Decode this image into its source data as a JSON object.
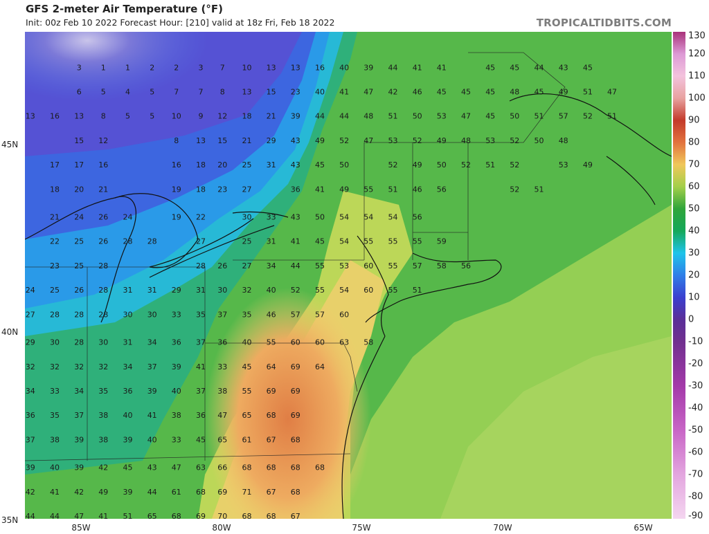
{
  "header": {
    "title": "GFS 2-meter Air Temperature (°F)",
    "subtitle": "Init: 00z Feb 10 2022   Forecast Hour: [210]   valid at 18z Fri, Feb 18 2022",
    "source": "TROPICALTIDBITS.COM"
  },
  "map": {
    "lat_labels": [
      {
        "label": "45N",
        "lat": 45
      },
      {
        "label": "40N",
        "lat": 40
      },
      {
        "label": "35N",
        "lat": 35
      }
    ],
    "lon_labels": [
      {
        "label": "85W",
        "lon": -85
      },
      {
        "label": "80W",
        "lon": -80
      },
      {
        "label": "75W",
        "lon": -75
      },
      {
        "label": "70W",
        "lon": -70
      },
      {
        "label": "65W",
        "lon": -65
      }
    ],
    "station_values": [
      [
        -85.9,
        47.9,
        "3"
      ],
      [
        -85.0,
        47.9,
        "1"
      ],
      [
        -84.1,
        47.9,
        "1"
      ],
      [
        -83.2,
        47.9,
        "2"
      ],
      [
        -82.3,
        47.9,
        "2"
      ],
      [
        -81.4,
        47.9,
        "3"
      ],
      [
        -80.6,
        47.9,
        "7"
      ],
      [
        -79.7,
        47.9,
        "10"
      ],
      [
        -78.8,
        47.9,
        "13"
      ],
      [
        -77.9,
        47.9,
        "13"
      ],
      [
        -77.0,
        47.9,
        "16"
      ],
      [
        -76.1,
        47.9,
        "40"
      ],
      [
        -75.2,
        47.9,
        "39"
      ],
      [
        -74.3,
        47.9,
        "44"
      ],
      [
        -73.4,
        47.9,
        "41"
      ],
      [
        -72.5,
        47.9,
        "41"
      ],
      [
        -70.7,
        47.9,
        "45"
      ],
      [
        -69.8,
        47.9,
        "45"
      ],
      [
        -68.9,
        47.9,
        "44"
      ],
      [
        -68.0,
        47.9,
        "43"
      ],
      [
        -67.1,
        47.9,
        "45"
      ],
      [
        -85.9,
        47.2,
        "6"
      ],
      [
        -85.0,
        47.2,
        "5"
      ],
      [
        -84.1,
        47.2,
        "4"
      ],
      [
        -83.2,
        47.2,
        "5"
      ],
      [
        -82.3,
        47.2,
        "7"
      ],
      [
        -81.4,
        47.2,
        "7"
      ],
      [
        -80.6,
        47.2,
        "8"
      ],
      [
        -79.7,
        47.2,
        "13"
      ],
      [
        -78.8,
        47.2,
        "15"
      ],
      [
        -77.9,
        47.2,
        "23"
      ],
      [
        -77.0,
        47.2,
        "40"
      ],
      [
        -76.1,
        47.2,
        "41"
      ],
      [
        -75.2,
        47.2,
        "47"
      ],
      [
        -74.3,
        47.2,
        "42"
      ],
      [
        -73.4,
        47.2,
        "46"
      ],
      [
        -72.5,
        47.2,
        "45"
      ],
      [
        -71.6,
        47.2,
        "45"
      ],
      [
        -70.7,
        47.2,
        "45"
      ],
      [
        -69.8,
        47.2,
        "48"
      ],
      [
        -68.9,
        47.2,
        "45"
      ],
      [
        -68.0,
        47.2,
        "49"
      ],
      [
        -67.1,
        47.2,
        "51"
      ],
      [
        -66.2,
        47.2,
        "47"
      ],
      [
        -87.7,
        46.5,
        "13"
      ],
      [
        -86.8,
        46.5,
        "16"
      ],
      [
        -85.9,
        46.5,
        "13"
      ],
      [
        -85.0,
        46.5,
        "8"
      ],
      [
        -84.1,
        46.5,
        "5"
      ],
      [
        -83.2,
        46.5,
        "5"
      ],
      [
        -82.3,
        46.5,
        "10"
      ],
      [
        -81.4,
        46.5,
        "9"
      ],
      [
        -80.6,
        46.5,
        "12"
      ],
      [
        -79.7,
        46.5,
        "18"
      ],
      [
        -78.8,
        46.5,
        "21"
      ],
      [
        -77.9,
        46.5,
        "39"
      ],
      [
        -77.0,
        46.5,
        "44"
      ],
      [
        -76.1,
        46.5,
        "44"
      ],
      [
        -75.2,
        46.5,
        "48"
      ],
      [
        -74.3,
        46.5,
        "51"
      ],
      [
        -73.4,
        46.5,
        "50"
      ],
      [
        -72.5,
        46.5,
        "53"
      ],
      [
        -71.6,
        46.5,
        "47"
      ],
      [
        -70.7,
        46.5,
        "45"
      ],
      [
        -69.8,
        46.5,
        "50"
      ],
      [
        -68.9,
        46.5,
        "51"
      ],
      [
        -68.0,
        46.5,
        "57"
      ],
      [
        -67.1,
        46.5,
        "52"
      ],
      [
        -66.2,
        46.5,
        "51"
      ],
      [
        -85.9,
        45.8,
        "15"
      ],
      [
        -85.0,
        45.8,
        "12"
      ],
      [
        -82.3,
        45.8,
        "8"
      ],
      [
        -81.4,
        45.8,
        "13"
      ],
      [
        -80.6,
        45.8,
        "15"
      ],
      [
        -79.7,
        45.8,
        "21"
      ],
      [
        -78.8,
        45.8,
        "29"
      ],
      [
        -77.9,
        45.8,
        "43"
      ],
      [
        -77.0,
        45.8,
        "49"
      ],
      [
        -76.1,
        45.8,
        "52"
      ],
      [
        -75.2,
        45.8,
        "47"
      ],
      [
        -74.3,
        45.8,
        "53"
      ],
      [
        -73.4,
        45.8,
        "52"
      ],
      [
        -72.5,
        45.8,
        "49"
      ],
      [
        -71.6,
        45.8,
        "48"
      ],
      [
        -70.7,
        45.8,
        "53"
      ],
      [
        -69.8,
        45.8,
        "52"
      ],
      [
        -68.9,
        45.8,
        "50"
      ],
      [
        -68.0,
        45.8,
        "48"
      ],
      [
        -86.8,
        45.1,
        "17"
      ],
      [
        -85.9,
        45.1,
        "17"
      ],
      [
        -85.0,
        45.1,
        "16"
      ],
      [
        -82.3,
        45.1,
        "16"
      ],
      [
        -81.4,
        45.1,
        "18"
      ],
      [
        -80.6,
        45.1,
        "20"
      ],
      [
        -79.7,
        45.1,
        "25"
      ],
      [
        -78.8,
        45.1,
        "31"
      ],
      [
        -77.9,
        45.1,
        "43"
      ],
      [
        -77.0,
        45.1,
        "45"
      ],
      [
        -76.1,
        45.1,
        "50"
      ],
      [
        -74.3,
        45.1,
        "52"
      ],
      [
        -73.4,
        45.1,
        "49"
      ],
      [
        -72.5,
        45.1,
        "50"
      ],
      [
        -71.6,
        45.1,
        "52"
      ],
      [
        -70.7,
        45.1,
        "51"
      ],
      [
        -69.8,
        45.1,
        "52"
      ],
      [
        -68.0,
        45.1,
        "53"
      ],
      [
        -67.1,
        45.1,
        "49"
      ],
      [
        -86.8,
        44.4,
        "18"
      ],
      [
        -85.9,
        44.4,
        "20"
      ],
      [
        -85.0,
        44.4,
        "21"
      ],
      [
        -82.3,
        44.4,
        "19"
      ],
      [
        -81.4,
        44.4,
        "18"
      ],
      [
        -80.6,
        44.4,
        "23"
      ],
      [
        -79.7,
        44.4,
        "27"
      ],
      [
        -77.9,
        44.4,
        "36"
      ],
      [
        -77.0,
        44.4,
        "41"
      ],
      [
        -76.1,
        44.4,
        "49"
      ],
      [
        -75.2,
        44.4,
        "55"
      ],
      [
        -74.3,
        44.4,
        "51"
      ],
      [
        -73.4,
        44.4,
        "46"
      ],
      [
        -72.5,
        44.4,
        "56"
      ],
      [
        -69.8,
        44.4,
        "52"
      ],
      [
        -68.9,
        44.4,
        "51"
      ],
      [
        -86.8,
        43.6,
        "21"
      ],
      [
        -85.9,
        43.6,
        "24"
      ],
      [
        -85.0,
        43.6,
        "26"
      ],
      [
        -84.1,
        43.6,
        "24"
      ],
      [
        -82.3,
        43.6,
        "19"
      ],
      [
        -81.4,
        43.6,
        "22"
      ],
      [
        -79.7,
        43.6,
        "30"
      ],
      [
        -78.8,
        43.6,
        "33"
      ],
      [
        -77.9,
        43.6,
        "43"
      ],
      [
        -77.0,
        43.6,
        "50"
      ],
      [
        -76.1,
        43.6,
        "54"
      ],
      [
        -75.2,
        43.6,
        "54"
      ],
      [
        -74.3,
        43.6,
        "54"
      ],
      [
        -73.4,
        43.6,
        "56"
      ],
      [
        -86.8,
        42.9,
        "22"
      ],
      [
        -85.9,
        42.9,
        "25"
      ],
      [
        -85.0,
        42.9,
        "26"
      ],
      [
        -84.1,
        42.9,
        "28"
      ],
      [
        -83.2,
        42.9,
        "28"
      ],
      [
        -81.4,
        42.9,
        "27"
      ],
      [
        -79.7,
        42.9,
        "25"
      ],
      [
        -78.8,
        42.9,
        "31"
      ],
      [
        -77.9,
        42.9,
        "41"
      ],
      [
        -77.0,
        42.9,
        "45"
      ],
      [
        -76.1,
        42.9,
        "54"
      ],
      [
        -75.2,
        42.9,
        "55"
      ],
      [
        -74.3,
        42.9,
        "55"
      ],
      [
        -73.4,
        42.9,
        "55"
      ],
      [
        -72.5,
        42.9,
        "59"
      ],
      [
        -86.8,
        42.2,
        "23"
      ],
      [
        -85.9,
        42.2,
        "25"
      ],
      [
        -85.0,
        42.2,
        "28"
      ],
      [
        -81.4,
        42.2,
        "28"
      ],
      [
        -80.6,
        42.2,
        "26"
      ],
      [
        -79.7,
        42.2,
        "27"
      ],
      [
        -78.8,
        42.2,
        "34"
      ],
      [
        -77.9,
        42.2,
        "44"
      ],
      [
        -77.0,
        42.2,
        "55"
      ],
      [
        -76.1,
        42.2,
        "53"
      ],
      [
        -75.2,
        42.2,
        "60"
      ],
      [
        -74.3,
        42.2,
        "55"
      ],
      [
        -73.4,
        42.2,
        "57"
      ],
      [
        -72.5,
        42.2,
        "58"
      ],
      [
        -71.6,
        42.2,
        "56"
      ],
      [
        -87.7,
        41.5,
        "24"
      ],
      [
        -86.8,
        41.5,
        "25"
      ],
      [
        -85.9,
        41.5,
        "26"
      ],
      [
        -85.0,
        41.5,
        "28"
      ],
      [
        -84.1,
        41.5,
        "31"
      ],
      [
        -83.2,
        41.5,
        "31"
      ],
      [
        -82.3,
        41.5,
        "29"
      ],
      [
        -81.4,
        41.5,
        "31"
      ],
      [
        -80.6,
        41.5,
        "30"
      ],
      [
        -79.7,
        41.5,
        "32"
      ],
      [
        -78.8,
        41.5,
        "40"
      ],
      [
        -77.9,
        41.5,
        "52"
      ],
      [
        -77.0,
        41.5,
        "55"
      ],
      [
        -76.1,
        41.5,
        "54"
      ],
      [
        -75.2,
        41.5,
        "60"
      ],
      [
        -74.3,
        41.5,
        "55"
      ],
      [
        -73.4,
        41.5,
        "51"
      ],
      [
        -87.7,
        40.8,
        "27"
      ],
      [
        -86.8,
        40.8,
        "28"
      ],
      [
        -85.9,
        40.8,
        "28"
      ],
      [
        -85.0,
        40.8,
        "28"
      ],
      [
        -84.1,
        40.8,
        "30"
      ],
      [
        -83.2,
        40.8,
        "30"
      ],
      [
        -82.3,
        40.8,
        "33"
      ],
      [
        -81.4,
        40.8,
        "35"
      ],
      [
        -80.6,
        40.8,
        "37"
      ],
      [
        -79.7,
        40.8,
        "35"
      ],
      [
        -78.8,
        40.8,
        "46"
      ],
      [
        -77.9,
        40.8,
        "57"
      ],
      [
        -77.0,
        40.8,
        "57"
      ],
      [
        -76.1,
        40.8,
        "60"
      ],
      [
        -87.7,
        40.0,
        "29"
      ],
      [
        -86.8,
        40.0,
        "30"
      ],
      [
        -85.9,
        40.0,
        "28"
      ],
      [
        -85.0,
        40.0,
        "30"
      ],
      [
        -84.1,
        40.0,
        "31"
      ],
      [
        -83.2,
        40.0,
        "34"
      ],
      [
        -82.3,
        40.0,
        "36"
      ],
      [
        -81.4,
        40.0,
        "37"
      ],
      [
        -80.6,
        40.0,
        "36"
      ],
      [
        -79.7,
        40.0,
        "40"
      ],
      [
        -78.8,
        40.0,
        "55"
      ],
      [
        -77.9,
        40.0,
        "60"
      ],
      [
        -77.0,
        40.0,
        "60"
      ],
      [
        -76.1,
        40.0,
        "63"
      ],
      [
        -75.2,
        40.0,
        "58"
      ],
      [
        -87.7,
        39.3,
        "32"
      ],
      [
        -86.8,
        39.3,
        "32"
      ],
      [
        -85.9,
        39.3,
        "32"
      ],
      [
        -85.0,
        39.3,
        "32"
      ],
      [
        -84.1,
        39.3,
        "34"
      ],
      [
        -83.2,
        39.3,
        "37"
      ],
      [
        -82.3,
        39.3,
        "39"
      ],
      [
        -81.4,
        39.3,
        "41"
      ],
      [
        -80.6,
        39.3,
        "33"
      ],
      [
        -79.7,
        39.3,
        "45"
      ],
      [
        -78.8,
        39.3,
        "64"
      ],
      [
        -77.9,
        39.3,
        "69"
      ],
      [
        -77.0,
        39.3,
        "64"
      ],
      [
        -87.7,
        38.6,
        "34"
      ],
      [
        -86.8,
        38.6,
        "33"
      ],
      [
        -85.9,
        38.6,
        "34"
      ],
      [
        -85.0,
        38.6,
        "35"
      ],
      [
        -84.1,
        38.6,
        "36"
      ],
      [
        -83.2,
        38.6,
        "39"
      ],
      [
        -82.3,
        38.6,
        "40"
      ],
      [
        -81.4,
        38.6,
        "37"
      ],
      [
        -80.6,
        38.6,
        "38"
      ],
      [
        -79.7,
        38.6,
        "55"
      ],
      [
        -78.8,
        38.6,
        "69"
      ],
      [
        -77.9,
        38.6,
        "69"
      ],
      [
        -87.7,
        37.9,
        "36"
      ],
      [
        -86.8,
        37.9,
        "35"
      ],
      [
        -85.9,
        37.9,
        "37"
      ],
      [
        -85.0,
        37.9,
        "38"
      ],
      [
        -84.1,
        37.9,
        "40"
      ],
      [
        -83.2,
        37.9,
        "41"
      ],
      [
        -82.3,
        37.9,
        "38"
      ],
      [
        -81.4,
        37.9,
        "36"
      ],
      [
        -80.6,
        37.9,
        "47"
      ],
      [
        -79.7,
        37.9,
        "65"
      ],
      [
        -78.8,
        37.9,
        "68"
      ],
      [
        -77.9,
        37.9,
        "69"
      ],
      [
        -87.7,
        37.2,
        "37"
      ],
      [
        -86.8,
        37.2,
        "38"
      ],
      [
        -85.9,
        37.2,
        "39"
      ],
      [
        -85.0,
        37.2,
        "38"
      ],
      [
        -84.1,
        37.2,
        "39"
      ],
      [
        -83.2,
        37.2,
        "40"
      ],
      [
        -82.3,
        37.2,
        "33"
      ],
      [
        -81.4,
        37.2,
        "45"
      ],
      [
        -80.6,
        37.2,
        "65"
      ],
      [
        -79.7,
        37.2,
        "61"
      ],
      [
        -78.8,
        37.2,
        "67"
      ],
      [
        -77.9,
        37.2,
        "68"
      ],
      [
        -87.7,
        36.4,
        "39"
      ],
      [
        -86.8,
        36.4,
        "40"
      ],
      [
        -85.9,
        36.4,
        "39"
      ],
      [
        -85.0,
        36.4,
        "42"
      ],
      [
        -84.1,
        36.4,
        "45"
      ],
      [
        -83.2,
        36.4,
        "43"
      ],
      [
        -82.3,
        36.4,
        "47"
      ],
      [
        -81.4,
        36.4,
        "63"
      ],
      [
        -80.6,
        36.4,
        "66"
      ],
      [
        -79.7,
        36.4,
        "68"
      ],
      [
        -78.8,
        36.4,
        "68"
      ],
      [
        -77.9,
        36.4,
        "68"
      ],
      [
        -77.0,
        36.4,
        "68"
      ],
      [
        -87.7,
        35.7,
        "42"
      ],
      [
        -86.8,
        35.7,
        "41"
      ],
      [
        -85.9,
        35.7,
        "42"
      ],
      [
        -85.0,
        35.7,
        "49"
      ],
      [
        -84.1,
        35.7,
        "39"
      ],
      [
        -83.2,
        35.7,
        "44"
      ],
      [
        -82.3,
        35.7,
        "61"
      ],
      [
        -81.4,
        35.7,
        "68"
      ],
      [
        -80.6,
        35.7,
        "69"
      ],
      [
        -79.7,
        35.7,
        "71"
      ],
      [
        -78.8,
        35.7,
        "67"
      ],
      [
        -77.9,
        35.7,
        "68"
      ],
      [
        -87.7,
        35.0,
        "44"
      ],
      [
        -86.8,
        35.0,
        "44"
      ],
      [
        -85.9,
        35.0,
        "47"
      ],
      [
        -85.0,
        35.0,
        "41"
      ],
      [
        -84.1,
        35.0,
        "51"
      ],
      [
        -83.2,
        35.0,
        "65"
      ],
      [
        -82.3,
        35.0,
        "68"
      ],
      [
        -81.4,
        35.0,
        "69"
      ],
      [
        -80.6,
        35.0,
        "70"
      ],
      [
        -79.7,
        35.0,
        "68"
      ],
      [
        -78.8,
        35.0,
        "68"
      ],
      [
        -77.9,
        35.0,
        "67"
      ]
    ]
  },
  "colorbar": {
    "unit": "°F",
    "labels": [
      "130",
      "120",
      "110",
      "100",
      "90",
      "80",
      "70",
      "60",
      "50",
      "40",
      "30",
      "20",
      "10",
      "0",
      "-10",
      "-20",
      "-30",
      "-40",
      "-50",
      "-60",
      "-70",
      "-80",
      "-90"
    ],
    "stops": [
      [
        -90,
        "#f4d6f0"
      ],
      [
        -70,
        "#e3a6df"
      ],
      [
        -50,
        "#c865c6"
      ],
      [
        -30,
        "#a33aa9"
      ],
      [
        -10,
        "#70308f"
      ],
      [
        0,
        "#5a2f98"
      ],
      [
        10,
        "#3b3fcf"
      ],
      [
        20,
        "#2f7fe8"
      ],
      [
        30,
        "#1ec4ea"
      ],
      [
        40,
        "#15a85a"
      ],
      [
        50,
        "#2fa53b"
      ],
      [
        60,
        "#a3cf4a"
      ],
      [
        70,
        "#f0c75a"
      ],
      [
        80,
        "#e2733e"
      ],
      [
        90,
        "#c33a2a"
      ],
      [
        100,
        "#e8a2a0"
      ],
      [
        110,
        "#f3c3dd"
      ],
      [
        120,
        "#dd9ad6"
      ],
      [
        130,
        "#a8327a"
      ]
    ]
  }
}
